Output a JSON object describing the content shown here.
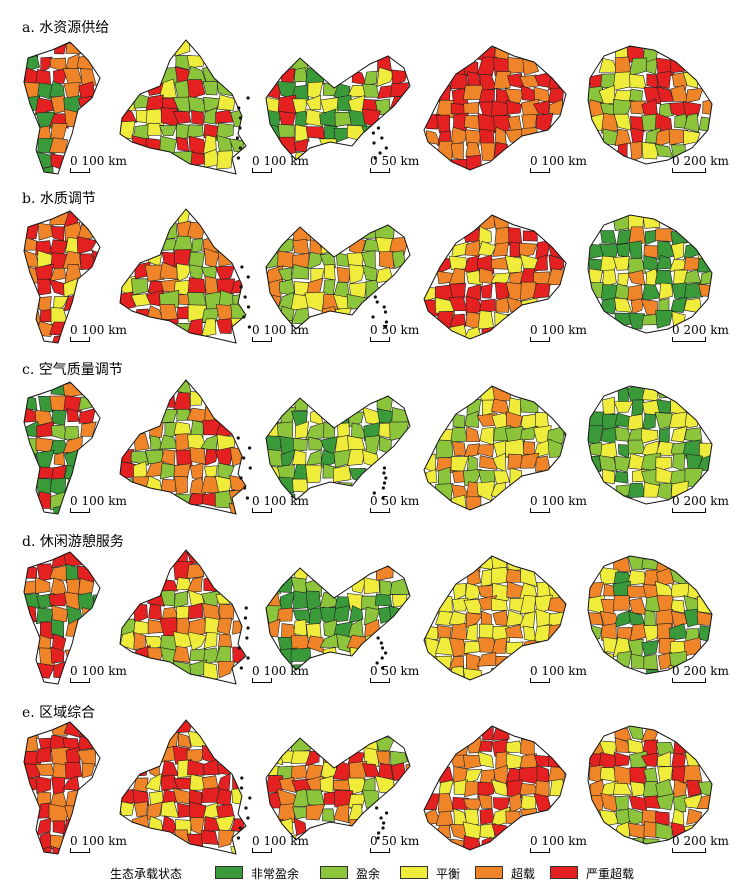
{
  "categories": [
    {
      "key": "very_surplus",
      "label": "非常盈余",
      "color": "#3a9a3a"
    },
    {
      "key": "surplus",
      "label": "盈余",
      "color": "#8cc43c"
    },
    {
      "key": "balance",
      "label": "平衡",
      "color": "#f0ec3c"
    },
    {
      "key": "overload",
      "label": "超载",
      "color": "#f08428"
    },
    {
      "key": "severe_overload",
      "label": "严重超载",
      "color": "#e42020"
    }
  ],
  "legend_title": "生态承载状态",
  "scalebars": [
    {
      "zero": "0",
      "value": "100",
      "unit": "km"
    },
    {
      "zero": "0",
      "value": "100",
      "unit": "km"
    },
    {
      "zero": "0",
      "value": "50",
      "unit": "km"
    },
    {
      "zero": "0",
      "value": "100",
      "unit": "km"
    },
    {
      "zero": "0",
      "value": "200",
      "unit": "km"
    }
  ],
  "sections": [
    {
      "title": "a. 水资源供给",
      "dominant": [
        [
          "overload",
          "severe_overload",
          "very_surplus"
        ],
        [
          "severe_overload",
          "surplus",
          "balance"
        ],
        [
          "very_surplus",
          "surplus",
          "balance",
          "severe_overload"
        ],
        [
          "severe_overload",
          "overload"
        ],
        [
          "overload",
          "balance",
          "surplus",
          "severe_overload"
        ]
      ]
    },
    {
      "title": "b. 水质调节",
      "dominant": [
        [
          "overload",
          "severe_overload",
          "balance"
        ],
        [
          "overload",
          "severe_overload",
          "balance",
          "surplus"
        ],
        [
          "surplus",
          "balance",
          "overload"
        ],
        [
          "overload",
          "severe_overload",
          "balance"
        ],
        [
          "surplus",
          "balance",
          "overload",
          "very_surplus"
        ]
      ]
    },
    {
      "title": "c. 空气质量调节",
      "dominant": [
        [
          "surplus",
          "very_surplus",
          "overload",
          "severe_overload"
        ],
        [
          "overload",
          "severe_overload",
          "surplus",
          "balance"
        ],
        [
          "surplus",
          "very_surplus",
          "balance"
        ],
        [
          "surplus",
          "balance",
          "overload"
        ],
        [
          "very_surplus",
          "surplus",
          "balance"
        ]
      ]
    },
    {
      "title": "d. 休闲游憩服务",
      "dominant": [
        [
          "very_surplus",
          "overload",
          "severe_overload"
        ],
        [
          "overload",
          "balance",
          "severe_overload",
          "surplus"
        ],
        [
          "very_surplus",
          "overload",
          "balance",
          "surplus"
        ],
        [
          "overload",
          "balance"
        ],
        [
          "very_surplus",
          "surplus",
          "overload",
          "balance"
        ]
      ]
    },
    {
      "title": "e. 区域综合",
      "dominant": [
        [
          "overload",
          "severe_overload"
        ],
        [
          "severe_overload",
          "overload",
          "balance"
        ],
        [
          "surplus",
          "overload",
          "severe_overload",
          "balance"
        ],
        [
          "severe_overload",
          "overload",
          "balance"
        ],
        [
          "overload",
          "severe_overload",
          "surplus",
          "balance"
        ]
      ]
    }
  ]
}
